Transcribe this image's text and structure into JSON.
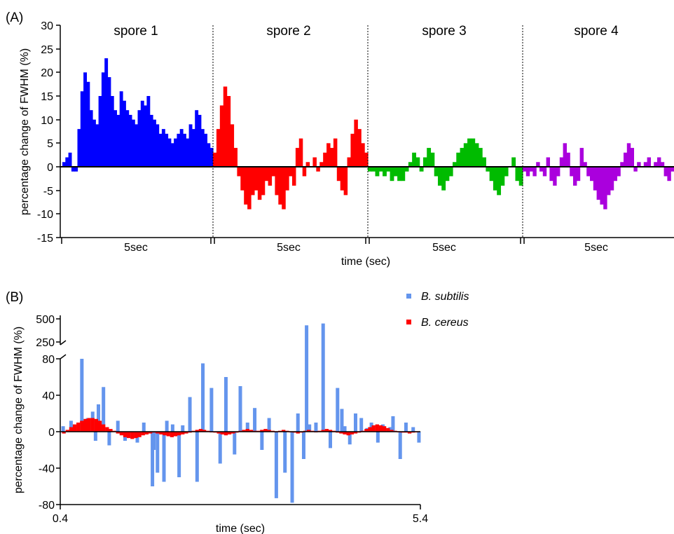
{
  "colors": {
    "spore1": "#0000ff",
    "spore2": "#ff0000",
    "spore3": "#00bb00",
    "spore4": "#aa00dd",
    "subtilis": "#6495ed",
    "cereus": "#ff0000"
  },
  "chart_data": [
    {
      "panel_label": "(A)",
      "type": "bar",
      "ylabel": "percentage change of FWHM (%)",
      "xlabel": "time (sec)",
      "ylim": [
        -15,
        30
      ],
      "yticks": [
        "30",
        "25",
        "20",
        "15",
        "10",
        "5",
        "0",
        "-5",
        "-10",
        "-15"
      ],
      "grid": false,
      "zero_line": true,
      "segments": [
        {
          "label": "spore 1",
          "duration_label": "5sec",
          "color_key": "spore1",
          "values": [
            1,
            2,
            3,
            -1,
            -1,
            8,
            16,
            20,
            18,
            12,
            10,
            9,
            15,
            20,
            23,
            19,
            15,
            12,
            11,
            16,
            14,
            12,
            11,
            10,
            9,
            12,
            14,
            13,
            15,
            11,
            10,
            9,
            7,
            8,
            7,
            6,
            5,
            6,
            7,
            8,
            7,
            6,
            9,
            8,
            12,
            11,
            8,
            7,
            5,
            4
          ]
        },
        {
          "label": "spore 2",
          "duration_label": "5sec",
          "color_key": "spore2",
          "values": [
            3,
            8,
            13,
            17,
            15,
            9,
            4,
            -2,
            -5,
            -8,
            -9,
            -6,
            -5,
            -7,
            -6,
            -3,
            -4,
            -2,
            -6,
            -8,
            -9,
            -5,
            -2,
            -4,
            4,
            6,
            -2,
            1,
            0,
            2,
            -1,
            1,
            3,
            5,
            4,
            6,
            -3,
            -5,
            -6,
            2,
            7,
            10,
            8,
            5,
            3
          ]
        },
        {
          "label": "spore 3",
          "duration_label": "5sec",
          "color_key": "spore3",
          "values": [
            -1,
            -1,
            -2,
            -1,
            -2,
            -1,
            -3,
            -2,
            -3,
            -3,
            -1,
            1,
            3,
            2,
            -1,
            2,
            4,
            3,
            -2,
            -4,
            -5,
            -3,
            -2,
            1,
            3,
            4,
            5,
            6,
            6,
            5,
            4,
            2,
            -1,
            -3,
            -5,
            -6,
            -4,
            -2,
            0,
            2,
            -3,
            -4
          ]
        },
        {
          "label": "spore 4",
          "duration_label": "5sec",
          "color_key": "spore4",
          "values": [
            -1,
            -2,
            -1,
            -2,
            1,
            -1,
            -2,
            2,
            -3,
            -4,
            -2,
            2,
            5,
            3,
            -2,
            -4,
            -3,
            4,
            1,
            -2,
            -3,
            -5,
            -7,
            -8,
            -9,
            -6,
            -5,
            -3,
            -2,
            1,
            3,
            5,
            4,
            -1,
            1,
            0,
            1,
            2,
            0,
            1,
            2,
            1,
            -2,
            -3,
            -1
          ]
        }
      ]
    },
    {
      "panel_label": "(B)",
      "type": "bar",
      "ylabel": "percentage change of FWHM (%)",
      "xlabel": "time (sec)",
      "xlim": [
        0.4,
        5.4
      ],
      "xticks": [
        "0.4",
        "5.4"
      ],
      "yticks_lower": [
        "80",
        "40",
        "0",
        "-40",
        "-80"
      ],
      "yticks_upper": [
        "500",
        "250"
      ],
      "y_axis_break": true,
      "grid": false,
      "zero_line": true,
      "legend_position": "top-right",
      "series": [
        {
          "name": "B. subtilis",
          "color_key": "subtilis",
          "x": [
            0.44,
            0.55,
            0.7,
            0.78,
            0.85,
            0.89,
            0.93,
            1.0,
            1.08,
            1.2,
            1.3,
            1.47,
            1.56,
            1.68,
            1.7,
            1.75,
            1.84,
            1.88,
            1.96,
            2.05,
            2.1,
            2.2,
            2.3,
            2.38,
            2.5,
            2.62,
            2.7,
            2.82,
            2.9,
            3.0,
            3.1,
            3.2,
            3.3,
            3.4,
            3.52,
            3.62,
            3.7,
            3.78,
            3.82,
            3.86,
            3.95,
            4.05,
            4.15,
            4.25,
            4.31,
            4.35,
            4.42,
            4.5,
            4.58,
            4.66,
            4.72,
            4.81,
            4.88,
            4.98,
            5.02,
            5.12,
            5.2,
            5.3,
            5.38
          ],
          "y": [
            6,
            12,
            80,
            15,
            22,
            -10,
            30,
            49,
            -15,
            12,
            -10,
            -12,
            10,
            -60,
            -20,
            -45,
            -55,
            12,
            8,
            -50,
            7,
            38,
            -55,
            75,
            48,
            -35,
            60,
            -25,
            50,
            10,
            26,
            -20,
            15,
            -73,
            -45,
            -78,
            20,
            -30,
            430,
            8,
            10,
            450,
            -18,
            48,
            25,
            6,
            -14,
            20,
            15,
            4,
            10,
            -12,
            8,
            5,
            17,
            -30,
            10,
            5,
            -12
          ]
        },
        {
          "name": "B. cereus",
          "color_key": "cereus",
          "x": [
            0.45,
            0.5,
            0.55,
            0.6,
            0.65,
            0.7,
            0.75,
            0.8,
            0.85,
            0.9,
            0.95,
            1.0,
            1.05,
            1.1,
            1.15,
            1.2,
            1.25,
            1.3,
            1.35,
            1.4,
            1.45,
            1.5,
            1.55,
            1.6,
            1.65,
            1.7,
            1.75,
            1.8,
            1.85,
            1.9,
            1.95,
            2.0,
            2.05,
            2.1,
            2.15,
            2.2,
            2.25,
            2.3,
            2.35,
            2.4,
            2.45,
            2.5,
            2.55,
            2.6,
            2.65,
            2.7,
            2.75,
            2.8,
            2.85,
            2.9,
            2.95,
            3.0,
            3.05,
            3.1,
            3.15,
            3.2,
            3.25,
            3.3,
            3.35,
            3.4,
            3.45,
            3.5,
            3.55,
            3.6,
            3.65,
            3.7,
            3.75,
            3.8,
            3.85,
            3.9,
            3.95,
            4.0,
            4.05,
            4.1,
            4.15,
            4.2,
            4.25,
            4.3,
            4.35,
            4.4,
            4.45,
            4.5,
            4.55,
            4.6,
            4.65,
            4.7,
            4.75,
            4.8,
            4.85,
            4.9,
            4.95,
            5.0,
            5.05,
            5.1,
            5.15,
            5.2,
            5.25,
            5.3,
            5.35
          ],
          "y": [
            -2,
            2,
            5,
            8,
            10,
            12,
            14,
            15,
            15,
            14,
            12,
            8,
            5,
            3,
            1,
            -2,
            -4,
            -6,
            -7,
            -8,
            -7,
            -6,
            -4,
            -3,
            -2,
            -1,
            -2,
            -3,
            -4,
            -5,
            -6,
            -5,
            -4,
            -3,
            -2,
            -1,
            1,
            2,
            3,
            2,
            1,
            0,
            -1,
            -2,
            -3,
            -4,
            -3,
            -2,
            -1,
            1,
            2,
            3,
            2,
            1,
            1,
            2,
            3,
            2,
            1,
            0,
            1,
            2,
            1,
            0,
            -1,
            -2,
            -1,
            1,
            2,
            1,
            0,
            1,
            2,
            3,
            2,
            1,
            -1,
            -2,
            -3,
            -4,
            -3,
            -2,
            -1,
            1,
            3,
            5,
            7,
            8,
            7,
            6,
            4,
            2,
            1,
            0,
            -1,
            -1,
            -2,
            -1,
            0
          ]
        }
      ]
    }
  ]
}
